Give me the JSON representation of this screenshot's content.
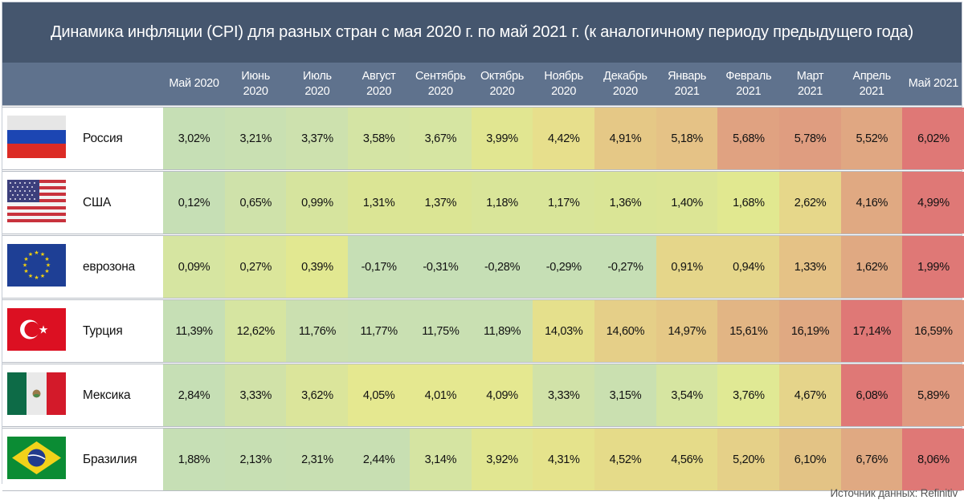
{
  "title": "Динамика инфляции (CPI) для разных стран с мая 2020 г. по май 2021 г. (к аналогичному периоду предыдущего года)",
  "columns": [
    {
      "line1": "Май 2020",
      "line2": ""
    },
    {
      "line1": "Июнь",
      "line2": "2020"
    },
    {
      "line1": "Июль",
      "line2": "2020"
    },
    {
      "line1": "Август",
      "line2": "2020"
    },
    {
      "line1": "Сентябрь",
      "line2": "2020"
    },
    {
      "line1": "Октябрь",
      "line2": "2020"
    },
    {
      "line1": "Ноябрь",
      "line2": "2020"
    },
    {
      "line1": "Декабрь",
      "line2": "2020"
    },
    {
      "line1": "Январь",
      "line2": "2021"
    },
    {
      "line1": "Февраль",
      "line2": "2021"
    },
    {
      "line1": "Март",
      "line2": "2021"
    },
    {
      "line1": "Апрель",
      "line2": "2021"
    },
    {
      "line1": "Май 2021",
      "line2": ""
    }
  ],
  "rows": [
    {
      "country": "Россия",
      "flag": "russia-flag-icon",
      "values": [
        "3,02%",
        "3,21%",
        "3,37%",
        "3,58%",
        "3,67%",
        "3,99%",
        "4,42%",
        "4,91%",
        "5,18%",
        "5,68%",
        "5,78%",
        "5,52%",
        "6,02%"
      ],
      "colors": [
        "#c6dfb5",
        "#c9e0b2",
        "#cde1ae",
        "#d4e4a4",
        "#d6e5a2",
        "#e1e691",
        "#e7df8c",
        "#e5c886",
        "#e5c286",
        "#e0a281",
        "#df9d80",
        "#e0a782",
        "#df7876"
      ]
    },
    {
      "country": "США",
      "flag": "usa-flag-icon",
      "values": [
        "0,12%",
        "0,65%",
        "0,99%",
        "1,31%",
        "1,37%",
        "1,18%",
        "1,17%",
        "1,36%",
        "1,40%",
        "1,68%",
        "2,62%",
        "4,16%",
        "4,99%"
      ],
      "colors": [
        "#c6dfb5",
        "#cfe2aa",
        "#d6e49e",
        "#dbe595",
        "#dbe594",
        "#d9e599",
        "#d9e599",
        "#dae596",
        "#dce595",
        "#e1e890",
        "#e6d78a",
        "#e0a982",
        "#df7876"
      ]
    },
    {
      "country": "еврозона",
      "flag": "eu-flag-icon",
      "values": [
        "0,09%",
        "0,27%",
        "0,39%",
        "-0,17%",
        "-0,31%",
        "-0,28%",
        "-0,29%",
        "-0,27%",
        "0,91%",
        "0,94%",
        "1,33%",
        "1,62%",
        "1,99%"
      ],
      "colors": [
        "#d6e5a1",
        "#dbe69b",
        "#e2e891",
        "#c6dfb5",
        "#c6dfb5",
        "#c6dfb5",
        "#c6dfb5",
        "#c6dfb5",
        "#e5d68a",
        "#e5d68a",
        "#e5c286",
        "#e0a982",
        "#df7876"
      ]
    },
    {
      "country": "Турция",
      "flag": "turkey-flag-icon",
      "values": [
        "11,39%",
        "12,62%",
        "11,76%",
        "11,77%",
        "11,75%",
        "11,89%",
        "14,03%",
        "14,60%",
        "14,97%",
        "15,61%",
        "16,19%",
        "17,14%",
        "16,59%"
      ],
      "colors": [
        "#c6dfb5",
        "#d6e5a1",
        "#cbe0b0",
        "#c9e0b2",
        "#c9e0b2",
        "#c9e0b2",
        "#e5e08c",
        "#e5cf88",
        "#e5c886",
        "#e2b584",
        "#e0a982",
        "#df7876",
        "#e09a80"
      ]
    },
    {
      "country": "Мексика",
      "flag": "mexico-flag-icon",
      "values": [
        "2,84%",
        "3,33%",
        "3,62%",
        "4,05%",
        "4,01%",
        "4,09%",
        "3,33%",
        "3,15%",
        "3,54%",
        "3,76%",
        "4,67%",
        "6,08%",
        "5,89%"
      ],
      "colors": [
        "#c6dfb5",
        "#d1e2a8",
        "#dbe59b",
        "#e5e890",
        "#e5e890",
        "#e5e890",
        "#d1e2a8",
        "#cae0b0",
        "#d6e5a1",
        "#e0e994",
        "#e5d48a",
        "#df7876",
        "#e09a80"
      ]
    },
    {
      "country": "Бразилия",
      "flag": "brazil-flag-icon",
      "values": [
        "1,88%",
        "2,13%",
        "2,31%",
        "2,44%",
        "3,14%",
        "3,92%",
        "4,31%",
        "4,52%",
        "4,56%",
        "5,20%",
        "6,10%",
        "6,76%",
        "8,06%"
      ],
      "colors": [
        "#c6dfb5",
        "#c7dfb3",
        "#c8dfb2",
        "#c8dfb2",
        "#d5e4a2",
        "#e1e691",
        "#e5e38c",
        "#e5db89",
        "#e5db89",
        "#e5d088",
        "#e3c385",
        "#e0a982",
        "#df7876"
      ]
    }
  ],
  "source": "Источник данных: Refinitiv",
  "chart_data": {
    "type": "heatmap",
    "title": "Динамика инфляции (CPI) для разных стран с мая 2020 г. по май 2021 г. (к аналогичному периоду предыдущего года)",
    "categories": [
      "Май 2020",
      "Июнь 2020",
      "Июль 2020",
      "Август 2020",
      "Сентябрь 2020",
      "Октябрь 2020",
      "Ноябрь 2020",
      "Декабрь 2020",
      "Январь 2021",
      "Февраль 2021",
      "Март 2021",
      "Апрель 2021",
      "Май 2021"
    ],
    "series": [
      {
        "name": "Россия",
        "values": [
          3.02,
          3.21,
          3.37,
          3.58,
          3.67,
          3.99,
          4.42,
          4.91,
          5.18,
          5.68,
          5.78,
          5.52,
          6.02
        ]
      },
      {
        "name": "США",
        "values": [
          0.12,
          0.65,
          0.99,
          1.31,
          1.37,
          1.18,
          1.17,
          1.36,
          1.4,
          1.68,
          2.62,
          4.16,
          4.99
        ]
      },
      {
        "name": "еврозона",
        "values": [
          0.09,
          0.27,
          0.39,
          -0.17,
          -0.31,
          -0.28,
          -0.29,
          -0.27,
          0.91,
          0.94,
          1.33,
          1.62,
          1.99
        ]
      },
      {
        "name": "Турция",
        "values": [
          11.39,
          12.62,
          11.76,
          11.77,
          11.75,
          11.89,
          14.03,
          14.6,
          14.97,
          15.61,
          16.19,
          17.14,
          16.59
        ]
      },
      {
        "name": "Мексика",
        "values": [
          2.84,
          3.33,
          3.62,
          4.05,
          4.01,
          4.09,
          3.33,
          3.15,
          3.54,
          3.76,
          4.67,
          6.08,
          5.89
        ]
      },
      {
        "name": "Бразилия",
        "values": [
          1.88,
          2.13,
          2.31,
          2.44,
          3.14,
          3.92,
          4.31,
          4.52,
          4.56,
          5.2,
          6.1,
          6.76,
          8.06
        ]
      }
    ],
    "unit": "%",
    "color_scale": "per-row green (low) → yellow → red (high)",
    "annotation": "Источник данных: Refinitiv"
  }
}
